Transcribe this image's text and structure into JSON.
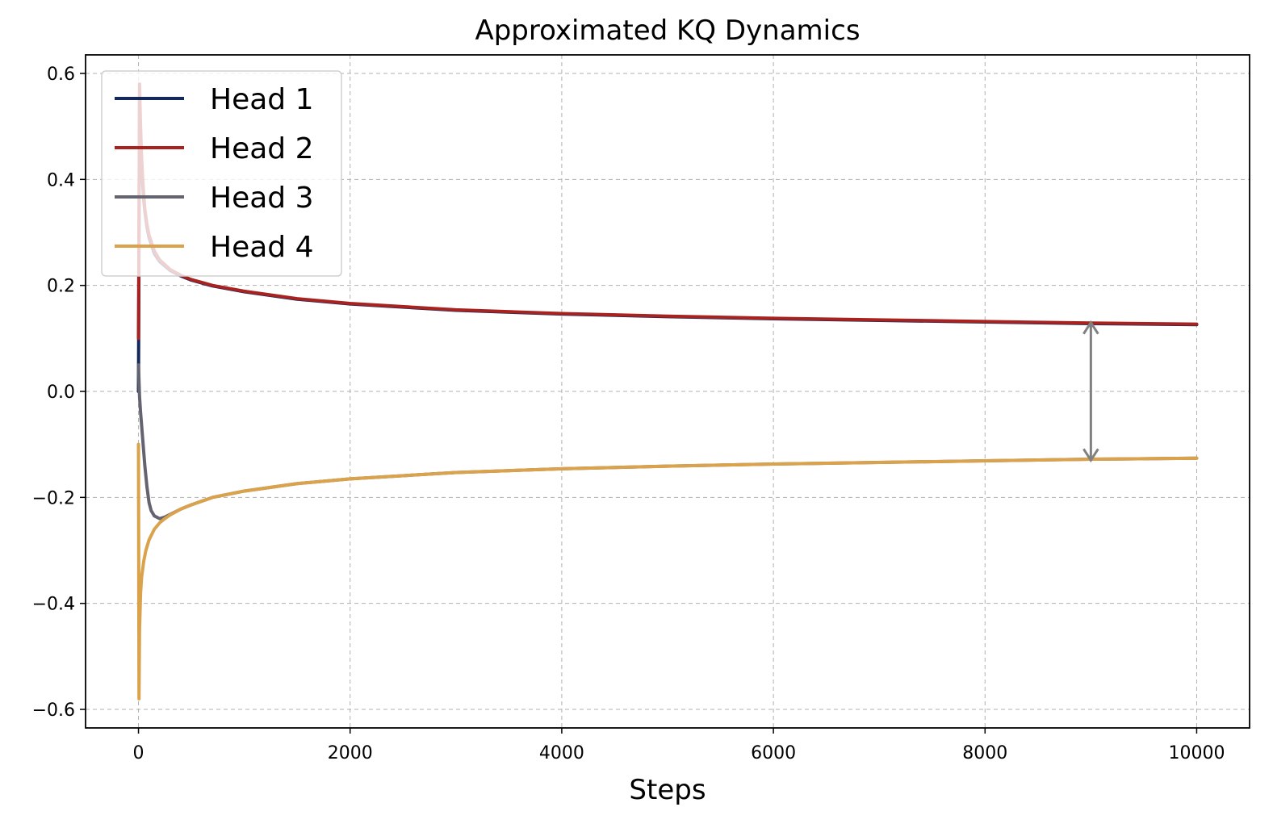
{
  "chart_data": {
    "type": "line",
    "title": "Approximated KQ Dynamics",
    "xlabel": "Steps",
    "ylabel": "",
    "xlim": [
      -500,
      10500
    ],
    "ylim": [
      -0.635,
      0.635
    ],
    "xticks": [
      0,
      2000,
      4000,
      6000,
      8000,
      10000
    ],
    "xtick_labels": [
      "0",
      "2000",
      "4000",
      "6000",
      "8000",
      "10000"
    ],
    "yticks": [
      -0.6,
      -0.4,
      -0.2,
      0.0,
      0.2,
      0.4,
      0.6
    ],
    "ytick_labels": [
      "−0.6",
      "−0.4",
      "−0.2",
      "0.0",
      "0.2",
      "0.4",
      "0.6"
    ],
    "grid": true,
    "legend_position": "top-left",
    "series": [
      {
        "name": "Head 1",
        "color": "#14285a",
        "x": [
          0,
          10,
          20,
          30,
          40,
          50,
          60,
          80,
          100,
          150,
          200,
          300,
          400,
          500,
          700,
          1000,
          1500,
          2000,
          3000,
          4000,
          5000,
          6000,
          7000,
          8000,
          9000,
          10000
        ],
        "y": [
          0.0,
          0.55,
          0.48,
          0.43,
          0.39,
          0.36,
          0.34,
          0.31,
          0.29,
          0.26,
          0.245,
          0.228,
          0.218,
          0.21,
          0.199,
          0.188,
          0.174,
          0.165,
          0.153,
          0.146,
          0.141,
          0.137,
          0.134,
          0.131,
          0.128,
          0.126
        ]
      },
      {
        "name": "Head 2",
        "color": "#a8221f",
        "x": [
          0,
          10,
          20,
          30,
          40,
          50,
          60,
          80,
          100,
          150,
          200,
          300,
          400,
          500,
          700,
          1000,
          1500,
          2000,
          3000,
          4000,
          5000,
          6000,
          7000,
          8000,
          9000,
          10000
        ],
        "y": [
          0.1,
          0.58,
          0.5,
          0.44,
          0.4,
          0.37,
          0.345,
          0.315,
          0.295,
          0.265,
          0.248,
          0.23,
          0.219,
          0.211,
          0.2,
          0.189,
          0.175,
          0.166,
          0.154,
          0.147,
          0.142,
          0.138,
          0.135,
          0.132,
          0.129,
          0.127
        ]
      },
      {
        "name": "Head 3",
        "color": "#636470",
        "x": [
          0,
          10,
          20,
          40,
          60,
          80,
          100,
          120,
          150,
          200,
          250,
          300,
          400,
          500,
          700,
          1000,
          1500,
          2000,
          3000,
          4000,
          5000,
          6000,
          7000,
          8000,
          9000,
          10000
        ],
        "y": [
          0.05,
          -0.01,
          -0.04,
          -0.09,
          -0.14,
          -0.18,
          -0.21,
          -0.225,
          -0.235,
          -0.24,
          -0.237,
          -0.232,
          -0.222,
          -0.214,
          -0.2,
          -0.188,
          -0.174,
          -0.165,
          -0.153,
          -0.146,
          -0.141,
          -0.137,
          -0.134,
          -0.131,
          -0.128,
          -0.126
        ]
      },
      {
        "name": "Head 4",
        "color": "#dba24c",
        "x": [
          0,
          5,
          10,
          20,
          30,
          50,
          70,
          100,
          150,
          200,
          250,
          300,
          400,
          500,
          700,
          1000,
          1500,
          2000,
          3000,
          4000,
          5000,
          6000,
          7000,
          8000,
          9000,
          10000
        ],
        "y": [
          -0.1,
          -0.58,
          -0.45,
          -0.38,
          -0.35,
          -0.32,
          -0.3,
          -0.28,
          -0.26,
          -0.248,
          -0.24,
          -0.233,
          -0.222,
          -0.214,
          -0.2,
          -0.188,
          -0.174,
          -0.165,
          -0.153,
          -0.146,
          -0.141,
          -0.137,
          -0.134,
          -0.131,
          -0.128,
          -0.126
        ]
      }
    ],
    "annotations": [
      {
        "type": "double-arrow",
        "x": 9000,
        "y_from": 0.13,
        "y_to": -0.13,
        "color": "#808080"
      }
    ]
  }
}
